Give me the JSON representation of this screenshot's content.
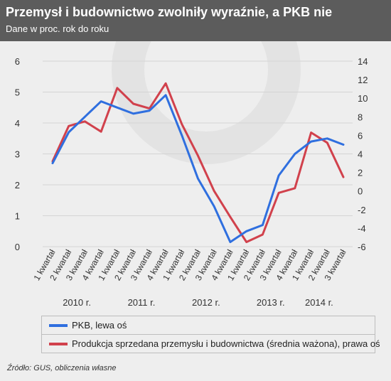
{
  "header": {
    "title": "Przemysł i budownictwo zwolniły wyraźnie, a PKB nie",
    "subtitle": "Dane w proc. rok do roku"
  },
  "legend": {
    "pkb_label": "PKB, lewa oś",
    "industry_label": "Produkcja sprzedana przemysłu i budownictwa (średnia ważona), prawa oś"
  },
  "source": "Źródło: GUS, obliczenia własne",
  "colors": {
    "pkb": "#2f6fdf",
    "industry": "#d1414c",
    "grid": "#d4d4d4",
    "axis_text": "#333333"
  },
  "chart_data": {
    "type": "line",
    "categories": [
      "1 kwartał",
      "2 kwartał",
      "3 kwartał",
      "4 kwartał",
      "1 kwartał",
      "2 kwartał",
      "3 kwartał",
      "4 kwartał",
      "1 kwartał",
      "2 kwartał",
      "3 kwartał",
      "4 kwartał",
      "1 kwartał",
      "2 kwartał",
      "3 kwartał",
      "4 kwartał",
      "1 kwartał",
      "2 kwartał",
      "3 kwartał"
    ],
    "year_labels": [
      {
        "label": "2010 r.",
        "index": 1.5
      },
      {
        "label": "2011 r.",
        "index": 5.5
      },
      {
        "label": "2012 r.",
        "index": 9.5
      },
      {
        "label": "2013 r.",
        "index": 13.5
      },
      {
        "label": "2014 r.",
        "index": 16.5
      }
    ],
    "y_left": {
      "min": 0,
      "max": 6,
      "ticks": [
        0,
        1,
        2,
        3,
        4,
        5,
        6
      ]
    },
    "y_right": {
      "min": -6,
      "max": 14,
      "ticks": [
        -6,
        -4,
        -2,
        0,
        2,
        4,
        6,
        8,
        10,
        12,
        14
      ]
    },
    "grid": true,
    "legend_position": "bottom",
    "series": [
      {
        "name": "PKB, lewa oś",
        "axis": "left",
        "color": "#2f6fdf",
        "values": [
          2.7,
          3.7,
          4.2,
          4.7,
          4.5,
          4.3,
          4.4,
          4.9,
          3.6,
          2.2,
          1.3,
          0.15,
          0.5,
          0.7,
          2.3,
          3.0,
          3.4,
          3.5,
          3.3
        ]
      },
      {
        "name": "Produkcja sprzedana przemysłu i budownictwa (średnia ważona), prawa oś",
        "axis": "right",
        "color": "#d1414c",
        "values": [
          3.2,
          7.0,
          7.5,
          6.4,
          11.1,
          9.4,
          8.9,
          11.6,
          7.2,
          3.8,
          0.0,
          -2.8,
          -5.5,
          -4.7,
          -0.2,
          0.3,
          6.3,
          5.2,
          1.5
        ]
      }
    ]
  }
}
